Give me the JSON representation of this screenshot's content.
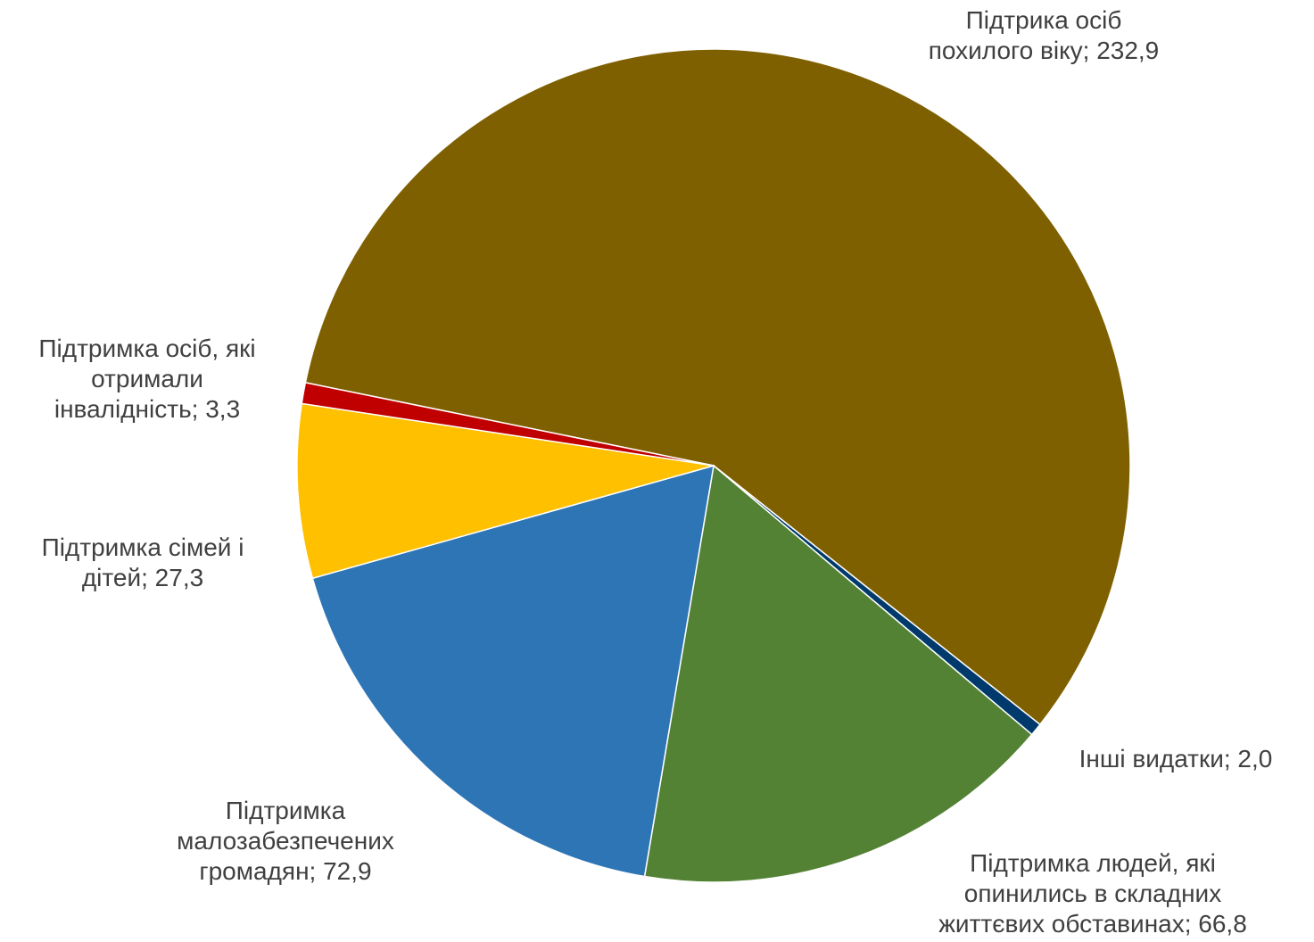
{
  "chart_data": {
    "type": "pie",
    "title": "",
    "slices": [
      {
        "name": "Підтримка осіб похилого віку",
        "value": 232.9,
        "label_lines": [
          "Підтрика осіб",
          "похилого віку; 232,9"
        ],
        "color": "#7F6000"
      },
      {
        "name": "Інші видатки",
        "value": 2.0,
        "label_lines": [
          "Інші видатки; 2,0"
        ],
        "color": "#003A6C"
      },
      {
        "name": "Підтримка людей, які опинились в складних життєвих обставинах",
        "value": 66.8,
        "label_lines": [
          "Підтримка людей, які",
          "опинились в складних",
          "життєвих обставинах; 66,8"
        ],
        "color": "#548235"
      },
      {
        "name": "Підтримка малозабезпечених громадян",
        "value": 72.9,
        "label_lines": [
          "Підтримка",
          "малозабезпечених",
          "громадян; 72,9"
        ],
        "color": "#2E75B6"
      },
      {
        "name": "Підтримка сімей і дітей",
        "value": 27.3,
        "label_lines": [
          "Підтримка сімей і",
          "дітей; 27,3"
        ],
        "color": "#FFC000"
      },
      {
        "name": "Підтримка осіб, які отримали інвалідність",
        "value": 3.3,
        "label_lines": [
          "Підтримка осіб, які",
          "отримали",
          "інвалідність; 3,3"
        ],
        "color": "#C00000"
      }
    ]
  }
}
